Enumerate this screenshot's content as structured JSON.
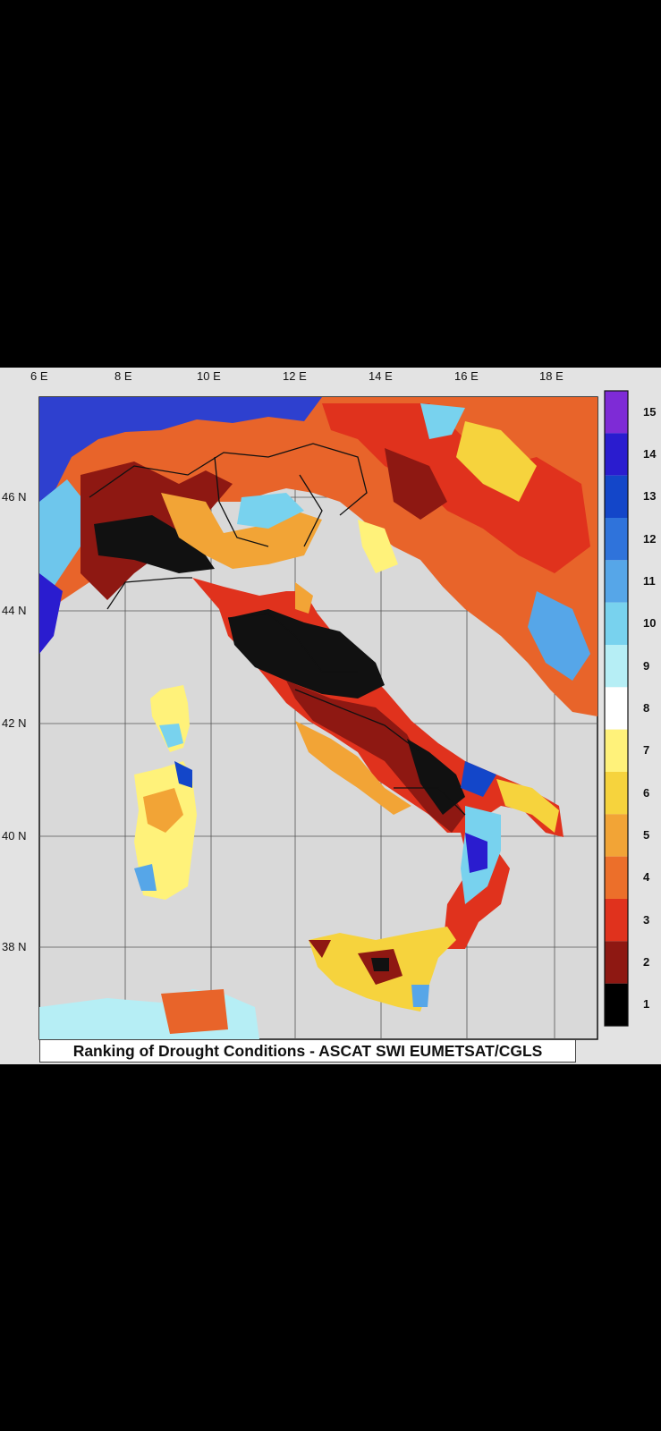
{
  "map": {
    "caption": "Ranking of Drought Conditions - ASCAT SWI EUMETSAT/CGLS",
    "longitude_labels": [
      "6 E",
      "8 E",
      "10 E",
      "12 E",
      "14 E",
      "16 E",
      "18 E"
    ],
    "latitude_labels": [
      "46 N",
      "44 N",
      "42 N",
      "40 N",
      "38 N"
    ],
    "legend": {
      "labels": [
        "15",
        "14",
        "13",
        "12",
        "11",
        "10",
        "9",
        "8",
        "7",
        "6",
        "5",
        "4",
        "3",
        "2",
        "1"
      ],
      "colors": [
        "#7e2bd6",
        "#2a1ccf",
        "#1346c9",
        "#2f73db",
        "#56a6e8",
        "#78d2ee",
        "#b6eef5",
        "#ffffff",
        "#fff27a",
        "#f6d33d",
        "#f2a436",
        "#ec6f2a",
        "#e0321d",
        "#8e1812",
        "#000000"
      ]
    }
  }
}
